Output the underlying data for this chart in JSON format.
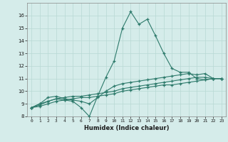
{
  "xlabel": "Humidex (Indice chaleur)",
  "background_color": "#d5ecea",
  "grid_color": "#b8d8d4",
  "line_color": "#2d7a6b",
  "x_values": [
    0,
    1,
    2,
    3,
    4,
    5,
    6,
    7,
    8,
    9,
    10,
    11,
    12,
    13,
    14,
    15,
    16,
    17,
    18,
    19,
    20,
    21,
    22,
    23
  ],
  "series1": [
    8.7,
    9.0,
    9.2,
    9.4,
    9.3,
    9.2,
    8.7,
    8.0,
    9.6,
    11.1,
    12.4,
    15.0,
    16.3,
    15.3,
    15.7,
    14.4,
    13.0,
    11.8,
    11.5,
    11.5,
    11.0,
    10.9,
    11.0,
    11.0
  ],
  "series2": [
    8.7,
    9.0,
    9.5,
    9.6,
    9.4,
    9.3,
    9.2,
    9.0,
    9.5,
    10.0,
    10.4,
    10.6,
    10.7,
    10.8,
    10.9,
    11.0,
    11.1,
    11.2,
    11.3,
    11.4,
    11.3,
    11.4,
    11.0,
    11.0
  ],
  "series3": [
    8.7,
    8.9,
    9.2,
    9.4,
    9.5,
    9.6,
    9.6,
    9.7,
    9.8,
    9.9,
    10.0,
    10.2,
    10.3,
    10.4,
    10.5,
    10.6,
    10.7,
    10.8,
    10.9,
    11.0,
    11.1,
    11.1,
    11.0,
    11.0
  ],
  "series4": [
    8.7,
    8.8,
    9.0,
    9.2,
    9.3,
    9.4,
    9.5,
    9.5,
    9.6,
    9.7,
    9.8,
    10.0,
    10.1,
    10.2,
    10.3,
    10.4,
    10.5,
    10.5,
    10.6,
    10.7,
    10.8,
    10.9,
    11.0,
    11.0
  ],
  "ylim": [
    8,
    17
  ],
  "xlim": [
    -0.5,
    23.5
  ],
  "yticks": [
    8,
    9,
    10,
    11,
    12,
    13,
    14,
    15,
    16
  ],
  "xticks": [
    0,
    1,
    2,
    3,
    4,
    5,
    6,
    7,
    8,
    9,
    10,
    11,
    12,
    13,
    14,
    15,
    16,
    17,
    18,
    19,
    20,
    21,
    22,
    23
  ]
}
